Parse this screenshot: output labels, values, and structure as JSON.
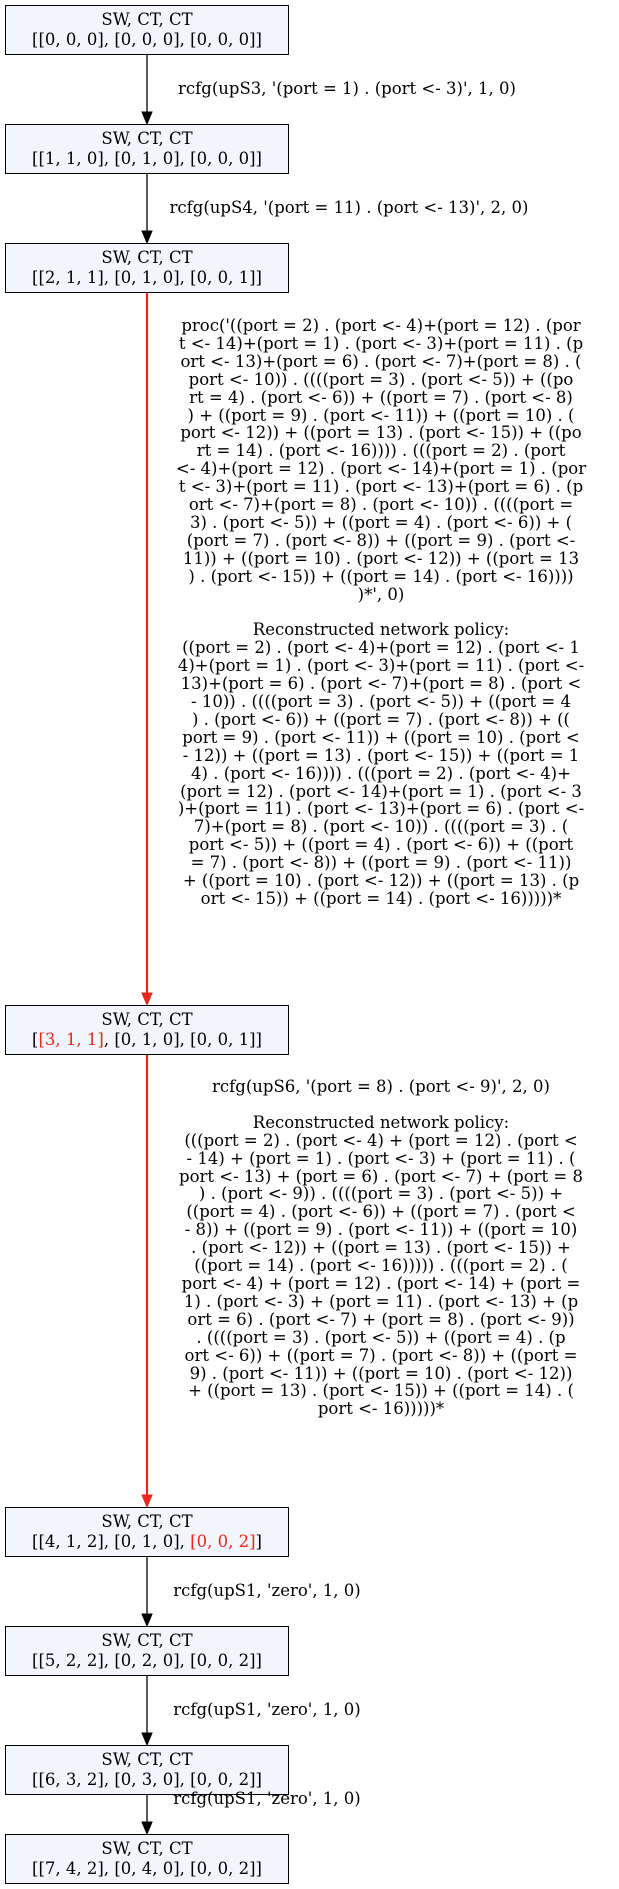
{
  "nodes": [
    {
      "title": "SW, CT, CT",
      "parts": [
        {
          "text": "[[0, 0, 0], [0, 0, 0], [0, 0, 0]]"
        }
      ]
    },
    {
      "title": "SW, CT, CT",
      "parts": [
        {
          "text": "[[1, 1, 0], [0, 1, 0], [0, 0, 0]]"
        }
      ]
    },
    {
      "title": "SW, CT, CT",
      "parts": [
        {
          "text": "[[2, 1, 1], [0, 1, 0], [0, 0, 1]]"
        }
      ]
    },
    {
      "title": "SW, CT, CT",
      "parts": [
        {
          "text": "["
        },
        {
          "text": "[3, 1, 1]",
          "highlight": true
        },
        {
          "text": ", [0, 1, 0], [0, 0, 1]]"
        }
      ]
    },
    {
      "title": "SW, CT, CT",
      "parts": [
        {
          "text": "[[4, 1, 2], [0, 1, 0], "
        },
        {
          "text": "[0, 0, 2]",
          "highlight": true
        },
        {
          "text": "]"
        }
      ]
    },
    {
      "title": "SW, CT, CT",
      "parts": [
        {
          "text": "[[5, 2, 2], [0, 2, 0], [0, 0, 2]]"
        }
      ]
    },
    {
      "title": "SW, CT, CT",
      "parts": [
        {
          "text": "[[6, 3, 2], [0, 3, 0], [0, 0, 2]]"
        }
      ]
    },
    {
      "title": "SW, CT, CT",
      "parts": [
        {
          "text": "[[7, 4, 2], [0, 4, 0], [0, 0, 2]]"
        }
      ]
    }
  ],
  "edges": [
    {
      "from": 0,
      "to": 1,
      "highlight": false,
      "label": "rcfg(upS3, '(port = 1) . (port <- 3)', 1, 0)"
    },
    {
      "from": 1,
      "to": 2,
      "highlight": false,
      "label": "rcfg(upS4, '(port = 11) . (port <- 13)', 2, 0)"
    },
    {
      "from": 2,
      "to": 3,
      "highlight": true,
      "label": "proc('((port = 2) . (port <- 4)+(port = 12) . (por\nt <- 14)+(port = 1) . (port <- 3)+(port = 11) . (p\nort <- 13)+(port = 6) . (port <- 7)+(port = 8) . (\nport <- 10)) . ((((port = 3) . (port <- 5)) + ((po\nrt = 4) . (port <- 6)) + ((port = 7) . (port <- 8)\n) + ((port = 9) . (port <- 11)) + ((port = 10) . (\nport <- 12)) + ((port = 13) . (port <- 15)) + ((po\nrt = 14) . (port <- 16)))) . (((port = 2) . (port\n<- 4)+(port = 12) . (port <- 14)+(port = 1) . (por\nt <- 3)+(port = 11) . (port <- 13)+(port = 6) . (p\nort <- 7)+(port = 8) . (port <- 10)) . ((((port =\n3) . (port <- 5)) + ((port = 4) . (port <- 6)) + (\n(port = 7) . (port <- 8)) + ((port = 9) . (port <-\n11)) + ((port = 10) . (port <- 12)) + ((port = 13\n) . (port <- 15)) + ((port = 14) . (port <- 16))))\n)*', 0)\n\nReconstructed network policy:\n((port = 2) . (port <- 4)+(port = 12) . (port <- 1\n4)+(port = 1) . (port <- 3)+(port = 11) . (port <-\n13)+(port = 6) . (port <- 7)+(port = 8) . (port <\n- 10)) . ((((port = 3) . (port <- 5)) + ((port = 4\n) . (port <- 6)) + ((port = 7) . (port <- 8)) + ((\nport = 9) . (port <- 11)) + ((port = 10) . (port <\n- 12)) + ((port = 13) . (port <- 15)) + ((port = 1\n4) . (port <- 16)))) . (((port = 2) . (port <- 4)+\n(port = 12) . (port <- 14)+(port = 1) . (port <- 3\n)+(port = 11) . (port <- 13)+(port = 6) . (port <-\n7)+(port = 8) . (port <- 10)) . ((((port = 3) . (\nport <- 5)) + ((port = 4) . (port <- 6)) + ((port\n= 7) . (port <- 8)) + ((port = 9) . (port <- 11))\n+ ((port = 10) . (port <- 12)) + ((port = 13) . (p\nort <- 15)) + ((port = 14) . (port <- 16)))))*"
    },
    {
      "from": 3,
      "to": 4,
      "highlight": true,
      "label": "rcfg(upS6, '(port = 8) . (port <- 9)', 2, 0)\n\nReconstructed network policy:\n(((port = 2) . (port <- 4) + (port = 12) . (port <\n- 14) + (port = 1) . (port <- 3) + (port = 11) . (\nport <- 13) + (port = 6) . (port <- 7) + (port = 8\n) . (port <- 9)) . ((((port = 3) . (port <- 5)) +\n((port = 4) . (port <- 6)) + ((port = 7) . (port <\n- 8)) + ((port = 9) . (port <- 11)) + ((port = 10)\n. (port <- 12)) + ((port = 13) . (port <- 15)) +\n((port = 14) . (port <- 16))))) . (((port = 2) . (\nport <- 4) + (port = 12) . (port <- 14) + (port =\n1) . (port <- 3) + (port = 11) . (port <- 13) + (p\nort = 6) . (port <- 7) + (port = 8) . (port <- 9))\n. ((((port = 3) . (port <- 5)) + ((port = 4) . (p\nort <- 6)) + ((port = 7) . (port <- 8)) + ((port =\n9) . (port <- 11)) + ((port = 10) . (port <- 12))\n+ ((port = 13) . (port <- 15)) + ((port = 14) . (\nport <- 16)))))*"
    },
    {
      "from": 4,
      "to": 5,
      "highlight": false,
      "label": "rcfg(upS1, 'zero', 1, 0)"
    },
    {
      "from": 5,
      "to": 6,
      "highlight": false,
      "label": "rcfg(upS1, 'zero', 1, 0)"
    },
    {
      "from": 6,
      "to": 7,
      "highlight": false,
      "label": "rcfg(upS1, 'zero', 1, 0)"
    }
  ],
  "colors": {
    "highlight": "#e8271c",
    "node_fill": "#f2f5fb",
    "stroke": "#000000"
  }
}
